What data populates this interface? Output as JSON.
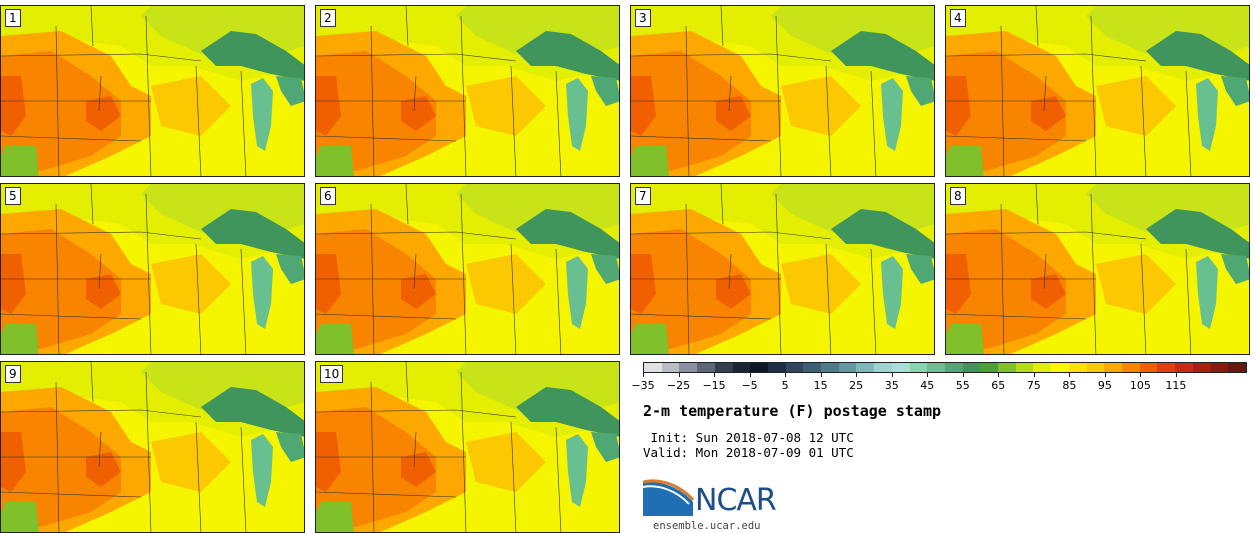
{
  "panels": [
    {
      "label": "1"
    },
    {
      "label": "2"
    },
    {
      "label": "3"
    },
    {
      "label": "4"
    },
    {
      "label": "5"
    },
    {
      "label": "6"
    },
    {
      "label": "7"
    },
    {
      "label": "8"
    },
    {
      "label": "9"
    },
    {
      "label": "10"
    }
  ],
  "colorbar": {
    "colors": [
      "#dfe1e5",
      "#b9bcc4",
      "#8b90a0",
      "#5d6579",
      "#353d52",
      "#1b2334",
      "#0e1726",
      "#1e2c44",
      "#2f465e",
      "#3e5f76",
      "#4f7a8c",
      "#6597a3",
      "#80b7bb",
      "#9fd3d1",
      "#a8e0d6",
      "#88d3b0",
      "#68c090",
      "#4fa874",
      "#3f955b",
      "#4f9e3a",
      "#80c02a",
      "#b4dc16",
      "#e0ee0a",
      "#f8f800",
      "#fde300",
      "#fcc800",
      "#fca800",
      "#f88400",
      "#f06000",
      "#e04010",
      "#c82c10",
      "#a82010",
      "#8a1a10",
      "#6e1410"
    ],
    "tick_labels": [
      "−35",
      "−25",
      "−15",
      "−5",
      "5",
      "15",
      "25",
      "35",
      "45",
      "55",
      "65",
      "75",
      "85",
      "95",
      "105",
      "115"
    ],
    "range": [
      -35,
      125
    ]
  },
  "title": "2-m temperature (F) postage stamp",
  "init_line": " Init: Sun 2018-07-08 12 UTC",
  "valid_line": "Valid: Mon 2018-07-09 01 UTC",
  "logo": {
    "text": "NCAR",
    "url": "ensemble.ucar.edu",
    "accent": "#1f6fb5",
    "stripe": "#e07a2c"
  }
}
